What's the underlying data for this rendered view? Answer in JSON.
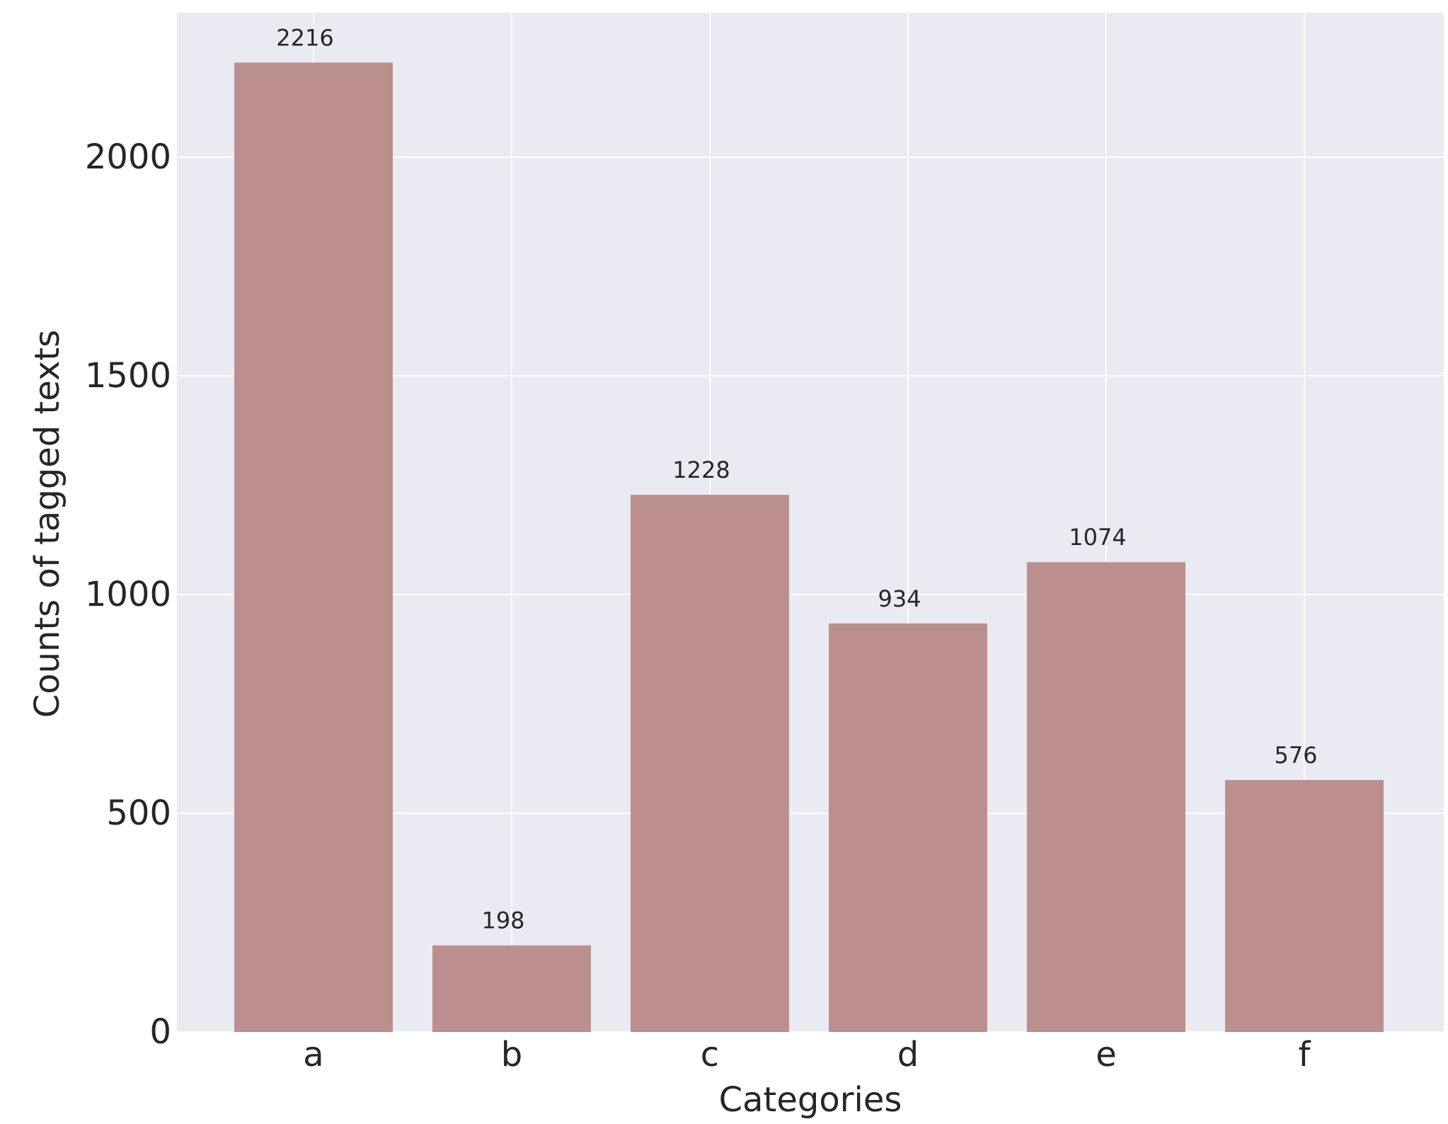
{
  "chart_data": {
    "type": "bar",
    "title": "",
    "xlabel": "Categories",
    "ylabel": "Counts of tagged texts",
    "categories": [
      "a",
      "b",
      "c",
      "d",
      "e",
      "f"
    ],
    "values": [
      2216,
      198,
      1228,
      934,
      1074,
      576
    ],
    "data_labels": [
      "2216",
      "198",
      "1228",
      "934",
      "1074",
      "576"
    ],
    "yticks": [
      0,
      500,
      1000,
      1500,
      2000
    ],
    "ylim": [
      0,
      2330
    ],
    "grid": true,
    "legend": false,
    "colors": {
      "bar": "#bc8f8f",
      "plot_background": "#eaeaf2",
      "grid": "#ffffff",
      "text": "#262626"
    }
  }
}
